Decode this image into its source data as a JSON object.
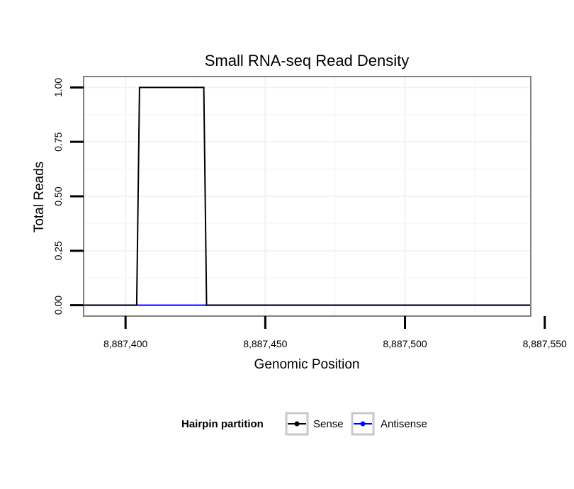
{
  "chart_data": {
    "type": "line",
    "title": "Small RNA-seq Read Density",
    "xlabel": "Genomic Position",
    "ylabel": "Total Reads",
    "xlim": [
      8887385,
      8887545
    ],
    "ylim": [
      -0.05,
      1.05
    ],
    "x_ticks": [
      8887400,
      8887450,
      8887500,
      8887550
    ],
    "x_tick_labels": [
      "8,887,400",
      "8,887,450",
      "8,887,500",
      "8,887,550"
    ],
    "y_ticks": [
      0,
      0.25,
      0.5,
      0.75,
      1.0
    ],
    "y_tick_labels": [
      "0.00",
      "0.25",
      "0.50",
      "0.75",
      "1.00"
    ],
    "grid": true,
    "legend_position": "bottom",
    "legend_title": "Hairpin partition",
    "series": [
      {
        "name": "Antisense",
        "color": "#0000ff",
        "x": [
          8887385,
          8887545
        ],
        "y": [
          0,
          0
        ]
      },
      {
        "name": "Sense",
        "color": "#000000",
        "x": [
          8887385,
          8887404,
          8887405,
          8887428,
          8887429,
          8887545
        ],
        "y": [
          0,
          0,
          1,
          1,
          0,
          0
        ]
      }
    ]
  }
}
